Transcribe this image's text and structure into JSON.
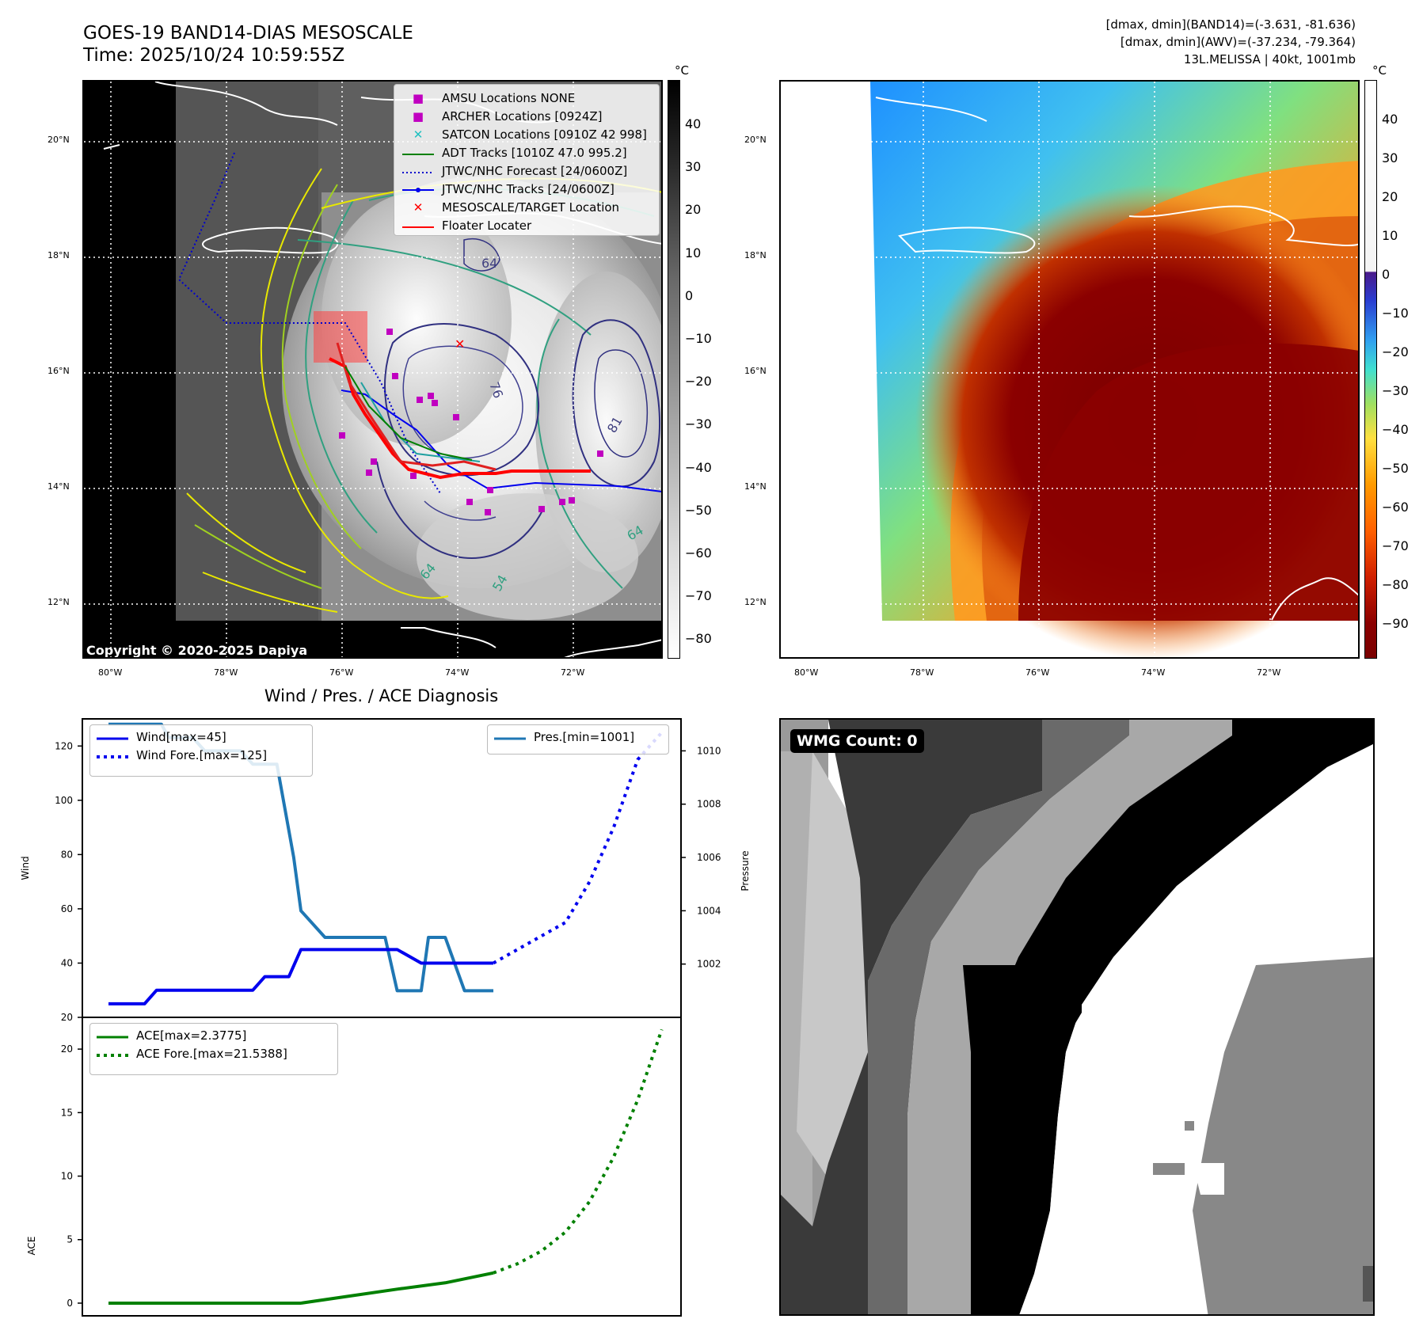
{
  "header": {
    "title_line1": "GOES-19 BAND14-DIAS MESOSCALE",
    "title_line2": "Time: 2025/10/24 10:59:55Z",
    "info_line1": "[dmax, dmin](BAND14)=(-3.631, -81.636)",
    "info_line2": "[dmax, dmin](AWV)=(-37.234, -79.364)",
    "info_line3": "13L.MELISSA | 40kt, 1001mb"
  },
  "map_left": {
    "lat_labels": [
      "20°N",
      "18°N",
      "16°N",
      "14°N",
      "12°N"
    ],
    "lon_labels": [
      "80°W",
      "78°W",
      "76°W",
      "74°W",
      "72°W"
    ],
    "contour_labels": [
      "64",
      "76",
      "81",
      "64",
      "64",
      "54"
    ],
    "legend": [
      {
        "label": "AMSU Locations NONE",
        "symbol": "■",
        "color": "#c000c0"
      },
      {
        "label": "ARCHER Locations [0924Z]",
        "symbol": "■",
        "color": "#c000c0"
      },
      {
        "label": "SATCON Locations [0910Z 42 998]",
        "symbol": "✕",
        "color": "#20c0c0"
      },
      {
        "label": "ADT Tracks [1010Z 47.0 995.2]",
        "symbol": "line",
        "color": "#008000"
      },
      {
        "label": "JTWC/NHC Forecast [24/0600Z]",
        "symbol": "dotted",
        "color": "#0000cc"
      },
      {
        "label": "JTWC/NHC Tracks [24/0600Z]",
        "symbol": "dotline",
        "color": "#0000ee"
      },
      {
        "label": "MESOSCALE/TARGET Location",
        "symbol": "✕",
        "color": "#ff0000"
      },
      {
        "label": "Floater Locater",
        "symbol": "line",
        "color": "#ff0000"
      }
    ],
    "copyright": "Copyright © 2020-2025 Dapiya",
    "colorbar_unit": "°C",
    "colorbar_ticks": [
      "40",
      "30",
      "20",
      "10",
      "0",
      "−10",
      "−20",
      "−30",
      "−40",
      "−50",
      "−60",
      "−70",
      "−80"
    ]
  },
  "map_right": {
    "lat_labels": [
      "20°N",
      "18°N",
      "16°N",
      "14°N",
      "12°N"
    ],
    "lon_labels": [
      "80°W",
      "78°W",
      "76°W",
      "74°W",
      "72°W"
    ],
    "colorbar_unit": "°C",
    "colorbar_ticks": [
      "40",
      "30",
      "20",
      "10",
      "0",
      "−10",
      "−20",
      "−30",
      "−40",
      "−50",
      "−60",
      "−70",
      "−80",
      "−90"
    ]
  },
  "wmg": {
    "label": "WMG Count: 0"
  },
  "chart_data": [
    {
      "type": "line",
      "title": "Wind / Pres. / ACE Diagnosis",
      "ylabel": "Wind",
      "y2label": "Pressure",
      "ylim": [
        20,
        130
      ],
      "y2lim": [
        1000.0,
        1011.2
      ],
      "yticks": [
        "120",
        "100",
        "80",
        "60",
        "40",
        "20"
      ],
      "y2ticks": [
        "1010",
        "1008",
        "1006",
        "1004",
        "1002"
      ],
      "legend": [
        "Wind[max=45]",
        "Wind Fore.[max=125]",
        "Pres.[min=1001]"
      ],
      "series": [
        {
          "name": "Wind[max=45]",
          "color": "#0000ee",
          "style": "solid",
          "x": [
            0,
            1.5,
            2,
            3,
            4,
            6,
            6.5,
            7.5,
            8,
            9,
            12,
            13,
            16
          ],
          "values": [
            25,
            25,
            30,
            30,
            30,
            30,
            35,
            35,
            45,
            45,
            45,
            40,
            40
          ]
        },
        {
          "name": "Wind Fore.[max=125]",
          "color": "#0000ee",
          "style": "dotted",
          "x": [
            16,
            17,
            19,
            20,
            21,
            22,
            23
          ],
          "values": [
            40,
            45,
            55,
            70,
            90,
            115,
            125
          ]
        },
        {
          "name": "Pres.[min=1001]",
          "color": "#1f77b4",
          "style": "solid",
          "axis": "y2",
          "x": [
            0,
            2.2,
            2.5,
            3.5,
            4,
            5.5,
            6,
            7,
            7.7,
            8,
            9,
            10.2,
            11.5,
            12,
            13,
            13.3,
            14,
            14.8,
            16
          ],
          "values": [
            1011,
            1011,
            1010.5,
            1010.5,
            1010,
            1010,
            1009.5,
            1009.5,
            1006,
            1004,
            1003,
            1003,
            1003,
            1001,
            1001,
            1003,
            1003,
            1001,
            1001
          ]
        }
      ]
    },
    {
      "type": "line",
      "ylabel": "ACE",
      "ylim": [
        -1,
        22.5
      ],
      "yticks": [
        "20",
        "15",
        "10",
        "5",
        "0"
      ],
      "legend": [
        "ACE[max=2.3775]",
        "ACE Fore.[max=21.5388]"
      ],
      "series": [
        {
          "name": "ACE[max=2.3775]",
          "color": "#008000",
          "style": "solid",
          "x": [
            0,
            6,
            8,
            10,
            12,
            14,
            16
          ],
          "values": [
            0,
            0,
            0,
            0.55,
            1.1,
            1.6,
            2.38
          ]
        },
        {
          "name": "ACE Fore.[max=21.5388]",
          "color": "#008000",
          "style": "dotted",
          "x": [
            16,
            17,
            18,
            19,
            20,
            21,
            22,
            23
          ],
          "values": [
            2.38,
            3.1,
            4.1,
            5.6,
            8.0,
            11.5,
            16.0,
            21.54
          ]
        }
      ]
    }
  ]
}
